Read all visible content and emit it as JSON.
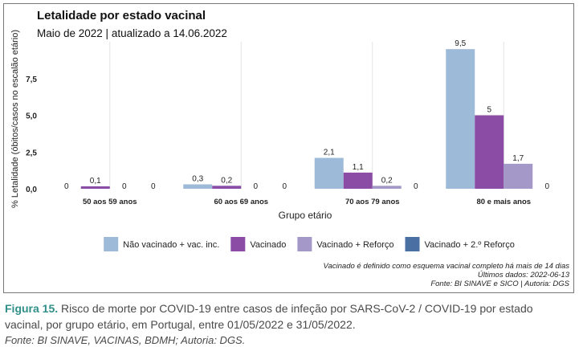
{
  "chart_data": {
    "type": "bar",
    "title": "Letalidade por estado vacinal",
    "subtitle": "Maio de 2022 | atualizado a 14.06.2022",
    "xlabel": "Grupo etário",
    "ylabel": "% Letalidade (óbitos/casos no escalão etário)",
    "ylim": [
      0,
      10
    ],
    "yticks": [
      0,
      2.5,
      5,
      7.5
    ],
    "ytick_labels": [
      "0,0",
      "2,5",
      "5,0",
      "7,5"
    ],
    "grid": "vertical",
    "legend_position": "bottom",
    "categories": [
      "50 aos 59 anos",
      "60 aos 69 anos",
      "70 aos 79 anos",
      "80 e mais anos"
    ],
    "series": [
      {
        "name": "Não vacinado + vac. inc.",
        "color": "#9dbad8",
        "values": [
          0,
          0.3,
          2.1,
          9.5
        ],
        "labels": [
          "0",
          "0,3",
          "2,1",
          "9,5"
        ]
      },
      {
        "name": "Vacinado",
        "color": "#8a4ca5",
        "values": [
          0.1,
          0.2,
          1.1,
          5
        ],
        "labels": [
          "0,1",
          "0,2",
          "1,1",
          "5"
        ]
      },
      {
        "name": "Vacinado + Reforço",
        "color": "#a498c9",
        "values": [
          0,
          0,
          0.2,
          1.7
        ],
        "labels": [
          "0",
          "0",
          "0,2",
          "1,7"
        ]
      },
      {
        "name": "Vacinado + 2.º Reforço",
        "color": "#4a6fa3",
        "values": [
          0,
          0,
          0,
          0
        ],
        "labels": [
          "0",
          "0",
          "0",
          "0"
        ]
      }
    ],
    "notes": [
      "Vacinado é definido como esquema vacinal completo há mais de 14 dias",
      "Últimos dados: 2022-06-13",
      "Fonte: BI SINAVE e SICO | Autoria: DGS"
    ]
  },
  "caption": {
    "label": "Figura 15.",
    "text": " Risco de morte por COVID-19 entre casos de infeção por SARS-CoV-2 / COVID-19 por estado vacinal, por grupo etário, em Portugal, entre 01/05/2022 e 31/05/2022.",
    "source": "Fonte: BI SINAVE, VACINAS, BDMH; Autoria: DGS."
  }
}
